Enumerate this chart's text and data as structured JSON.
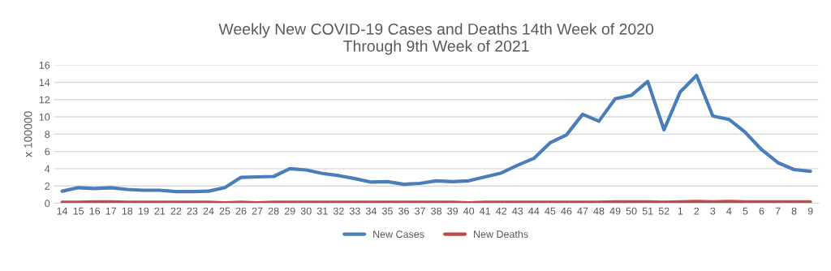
{
  "chart_data": {
    "type": "line",
    "title": "Weekly New COVID-19 Cases and Deaths 14th Week of 2020\nThrough 9th Week of 2021",
    "ylabel": "x 100000",
    "categories": [
      "14",
      "15",
      "16",
      "17",
      "18",
      "19",
      "21",
      "22",
      "23",
      "24",
      "25",
      "26",
      "27",
      "28",
      "29",
      "30",
      "31",
      "32",
      "33",
      "34",
      "35",
      "36",
      "37",
      "38",
      "39",
      "40",
      "41",
      "42",
      "43",
      "44",
      "45",
      "46",
      "47",
      "48",
      "49",
      "50",
      "51",
      "52",
      "1",
      "2",
      "3",
      "4",
      "5",
      "6",
      "7",
      "8",
      "9"
    ],
    "series": [
      {
        "name": "New Cases",
        "color": "#4a7ebb",
        "values": [
          1.4,
          1.8,
          1.7,
          1.8,
          1.6,
          1.5,
          1.5,
          1.35,
          1.35,
          1.4,
          1.8,
          3.0,
          3.05,
          3.1,
          4.0,
          3.85,
          3.45,
          3.2,
          2.85,
          2.45,
          2.5,
          2.2,
          2.3,
          2.6,
          2.5,
          2.6,
          3.05,
          3.5,
          4.4,
          5.2,
          7.0,
          7.9,
          10.3,
          9.5,
          12.1,
          12.5,
          14.1,
          8.5,
          12.9,
          14.8,
          10.1,
          9.7,
          8.2,
          6.2,
          4.7,
          3.9,
          3.7
        ]
      },
      {
        "name": "New Deaths",
        "color": "#be4b48",
        "values": [
          0.1,
          0.1,
          0.15,
          0.15,
          0.1,
          0.1,
          0.1,
          0.1,
          0.1,
          0.1,
          0.05,
          0.1,
          0.05,
          0.1,
          0.1,
          0.1,
          0.1,
          0.1,
          0.1,
          0.1,
          0.1,
          0.1,
          0.1,
          0.1,
          0.1,
          0.05,
          0.1,
          0.1,
          0.1,
          0.1,
          0.1,
          0.1,
          0.1,
          0.1,
          0.15,
          0.15,
          0.15,
          0.1,
          0.15,
          0.2,
          0.15,
          0.2,
          0.15,
          0.15,
          0.15,
          0.15,
          0.15
        ]
      }
    ],
    "ylim": [
      0,
      16
    ],
    "yticks": [
      0,
      2,
      4,
      6,
      8,
      10,
      12,
      14,
      16
    ],
    "grid": "y",
    "legend": "bottom",
    "marker": "none",
    "line_style": "solid"
  }
}
